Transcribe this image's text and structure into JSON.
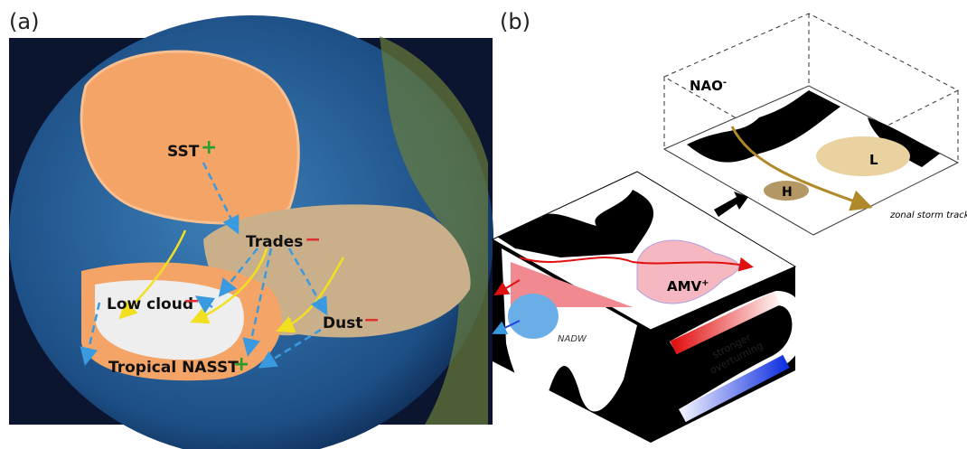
{
  "panel_a": {
    "label": "(a)",
    "annotations": [
      {
        "text": "SST",
        "sign": "+"
      },
      {
        "text": "Trades",
        "sign": "−"
      },
      {
        "text": "Low cloud",
        "sign": "−"
      },
      {
        "text": "Dust",
        "sign": "−"
      },
      {
        "text": "Tropical NASST",
        "sign": "+"
      }
    ]
  },
  "panel_b": {
    "label": "(b)",
    "nao": {
      "text": "NAO",
      "sup": "-"
    },
    "low": "L",
    "high": "H",
    "storm_track": "zonal storm track",
    "amv": {
      "text": "AMV",
      "sup": "+"
    },
    "nadw": "NADW",
    "overturning": [
      "stronger",
      "overturning"
    ]
  }
}
